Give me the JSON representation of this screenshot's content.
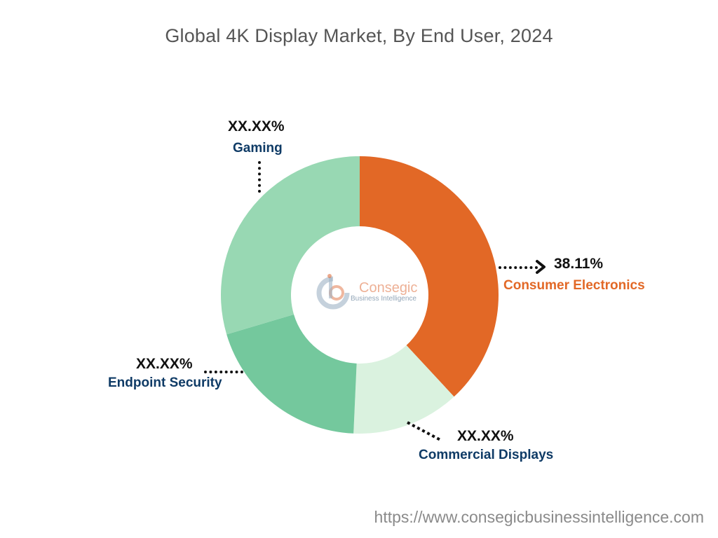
{
  "chart_data": {
    "type": "pie",
    "title": "Global 4K Display Market, By End User, 2024",
    "donut": true,
    "start_angle_deg": 0,
    "segments": [
      {
        "name": "Consumer Electronics",
        "label_value": "38.11%",
        "value": 38.11,
        "color": "#E26826",
        "label_color": "#E26826"
      },
      {
        "name": "Commercial Displays",
        "label_value": "XX.XX%",
        "value": 12.6,
        "color": "#DAF2DF",
        "label_color": "#0F3B66"
      },
      {
        "name": "Endpoint Security",
        "label_value": "XX.XX%",
        "value": 19.7,
        "color": "#74C89D",
        "label_color": "#0F3B66"
      },
      {
        "name": "Gaming",
        "label_value": "XX.XX%",
        "value": 29.59,
        "color": "#98D8B3",
        "label_color": "#0F3B66"
      }
    ]
  },
  "watermark": {
    "brand": "Consegic",
    "tagline": "Business Intelligence"
  },
  "footer": {
    "url": "https://www.consegicbusinessintelligence.com"
  }
}
